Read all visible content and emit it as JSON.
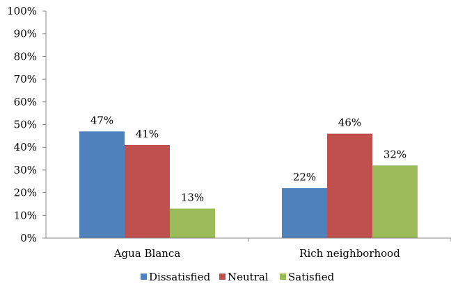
{
  "chart_data": {
    "type": "bar",
    "categories": [
      "Agua Blanca",
      "Rich neighborhood"
    ],
    "series": [
      {
        "name": "Dissatisfied",
        "values": [
          47,
          22
        ],
        "color": "#4F81BD",
        "labels": [
          "47%",
          "22%"
        ]
      },
      {
        "name": "Neutral",
        "values": [
          41,
          46
        ],
        "color": "#C0504D",
        "labels": [
          "41%",
          "46%"
        ]
      },
      {
        "name": "Satisfied",
        "values": [
          13,
          32
        ],
        "color": "#9BBB59",
        "labels": [
          "13%",
          "32%"
        ]
      }
    ],
    "ylim": [
      0,
      100
    ],
    "yticks": [
      0,
      10,
      20,
      30,
      40,
      50,
      60,
      70,
      80,
      90,
      100
    ],
    "ytick_labels": [
      "0%",
      "10%",
      "20%",
      "30%",
      "40%",
      "50%",
      "60%",
      "70%",
      "80%",
      "90%",
      "100%"
    ],
    "grid": false,
    "legend_position": "bottom",
    "title": "",
    "xlabel": "",
    "ylabel": ""
  }
}
